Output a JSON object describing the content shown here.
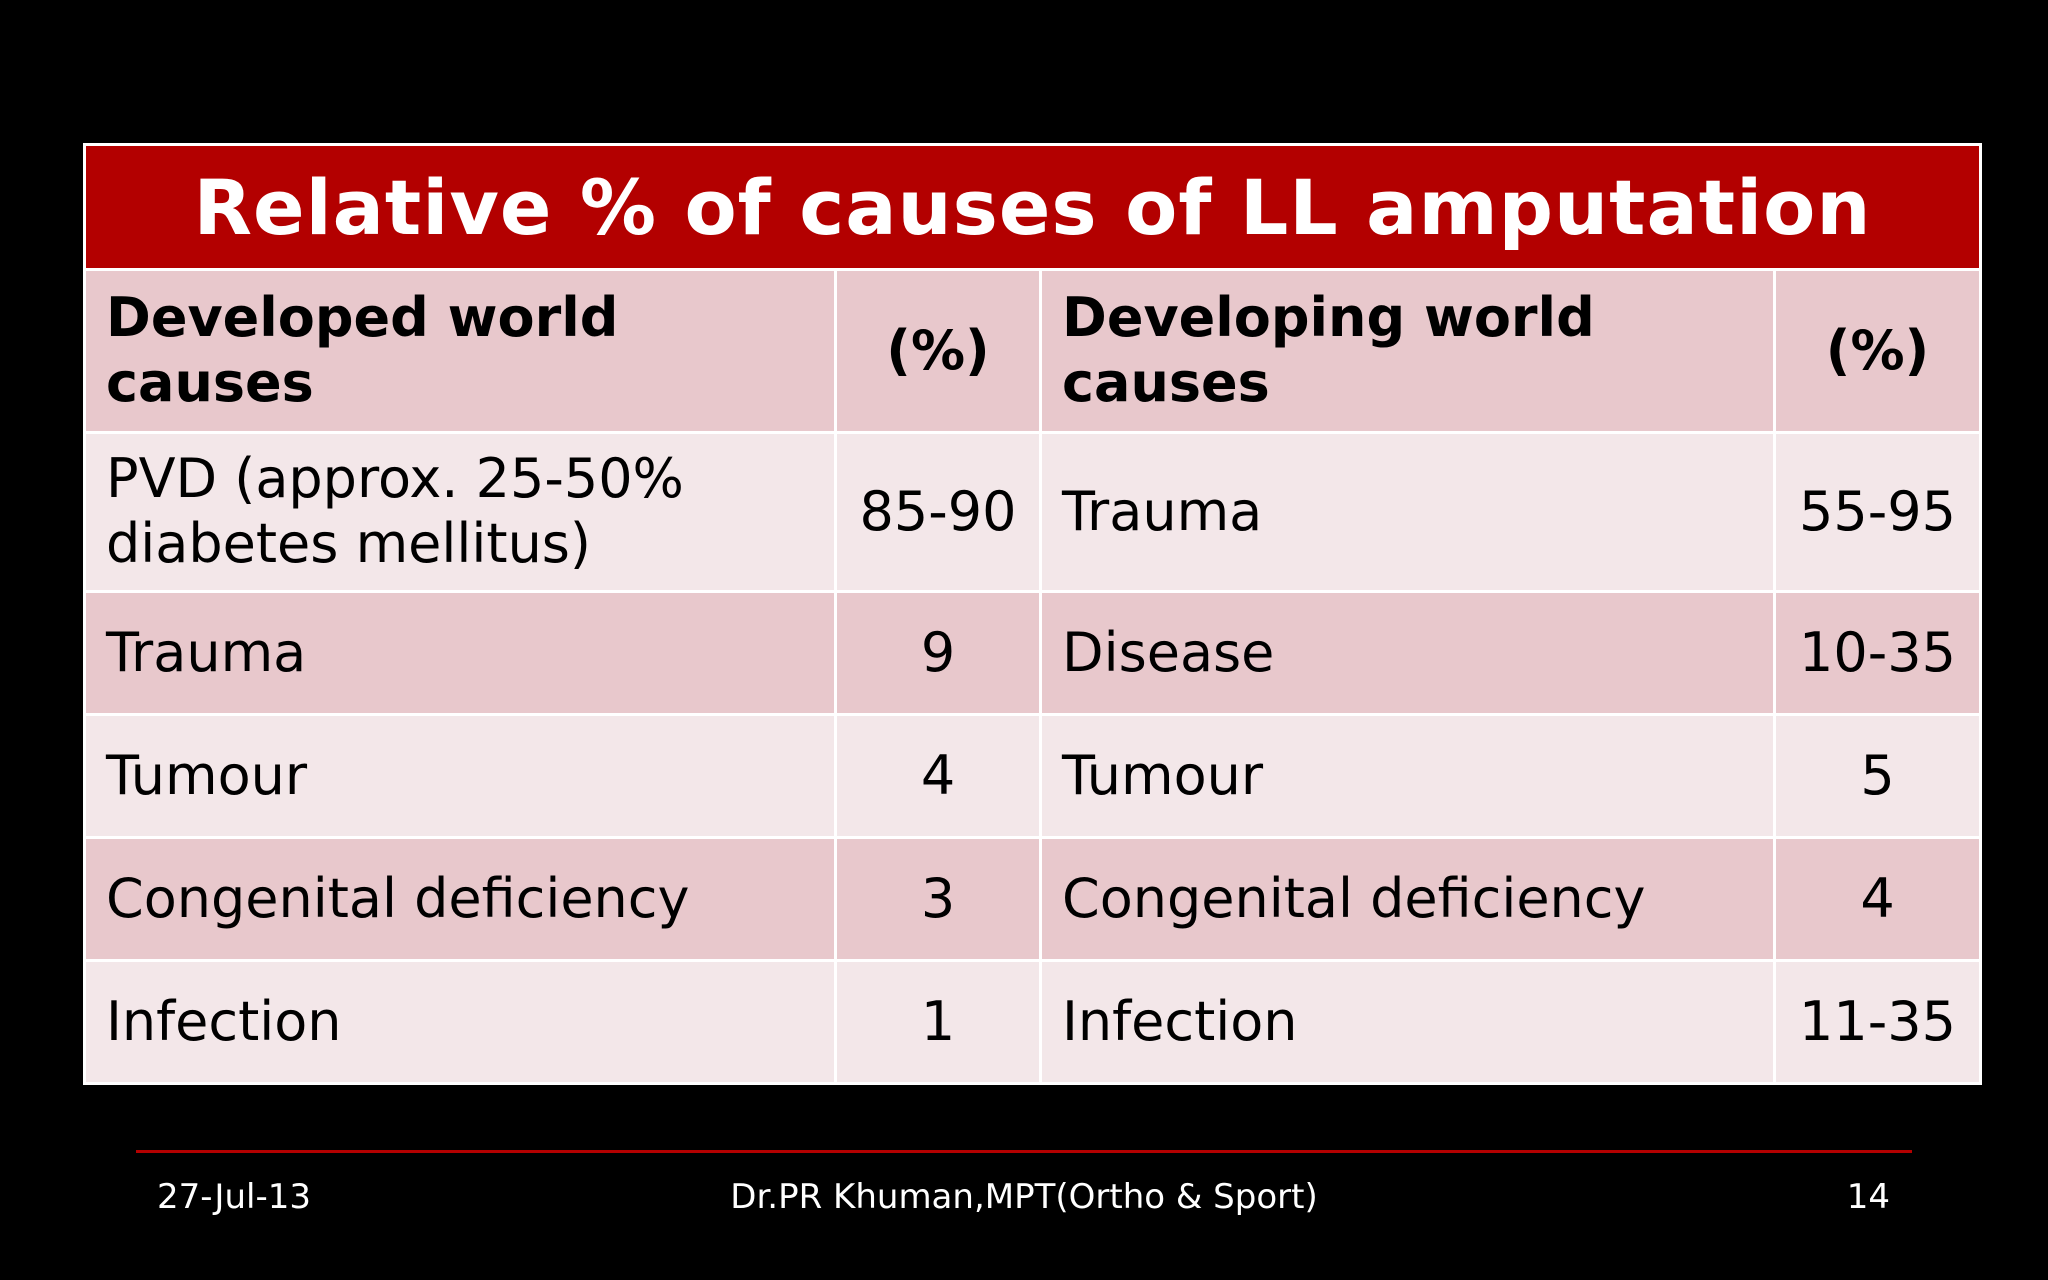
{
  "slide": {
    "title": "Relative % of causes of LL amputation"
  },
  "table": {
    "headers": [
      "Developed world causes",
      "(%)",
      "Developing world causes",
      "(%)"
    ],
    "rows": [
      [
        "PVD (approx. 25-50% diabetes mellitus)",
        "85-90",
        "Trauma",
        "55-95"
      ],
      [
        "Trauma",
        "9",
        "Disease",
        "10-35"
      ],
      [
        "Tumour",
        "4",
        "Tumour",
        "5"
      ],
      [
        "Congenital deficiency",
        "3",
        "Congenital deficiency",
        "4"
      ],
      [
        "Infection",
        "1",
        "Infection",
        "11-35"
      ]
    ]
  },
  "footer": {
    "date": "27-Jul-13",
    "author": "Dr.PR Khuman,MPT(Ortho & Sport)",
    "page_number": "14"
  },
  "colors": {
    "title_bar": "#b30000",
    "row_dark": "#e8c8cc",
    "row_light": "#f3e7e9",
    "background": "#000000",
    "footer_rule": "#b30000"
  }
}
